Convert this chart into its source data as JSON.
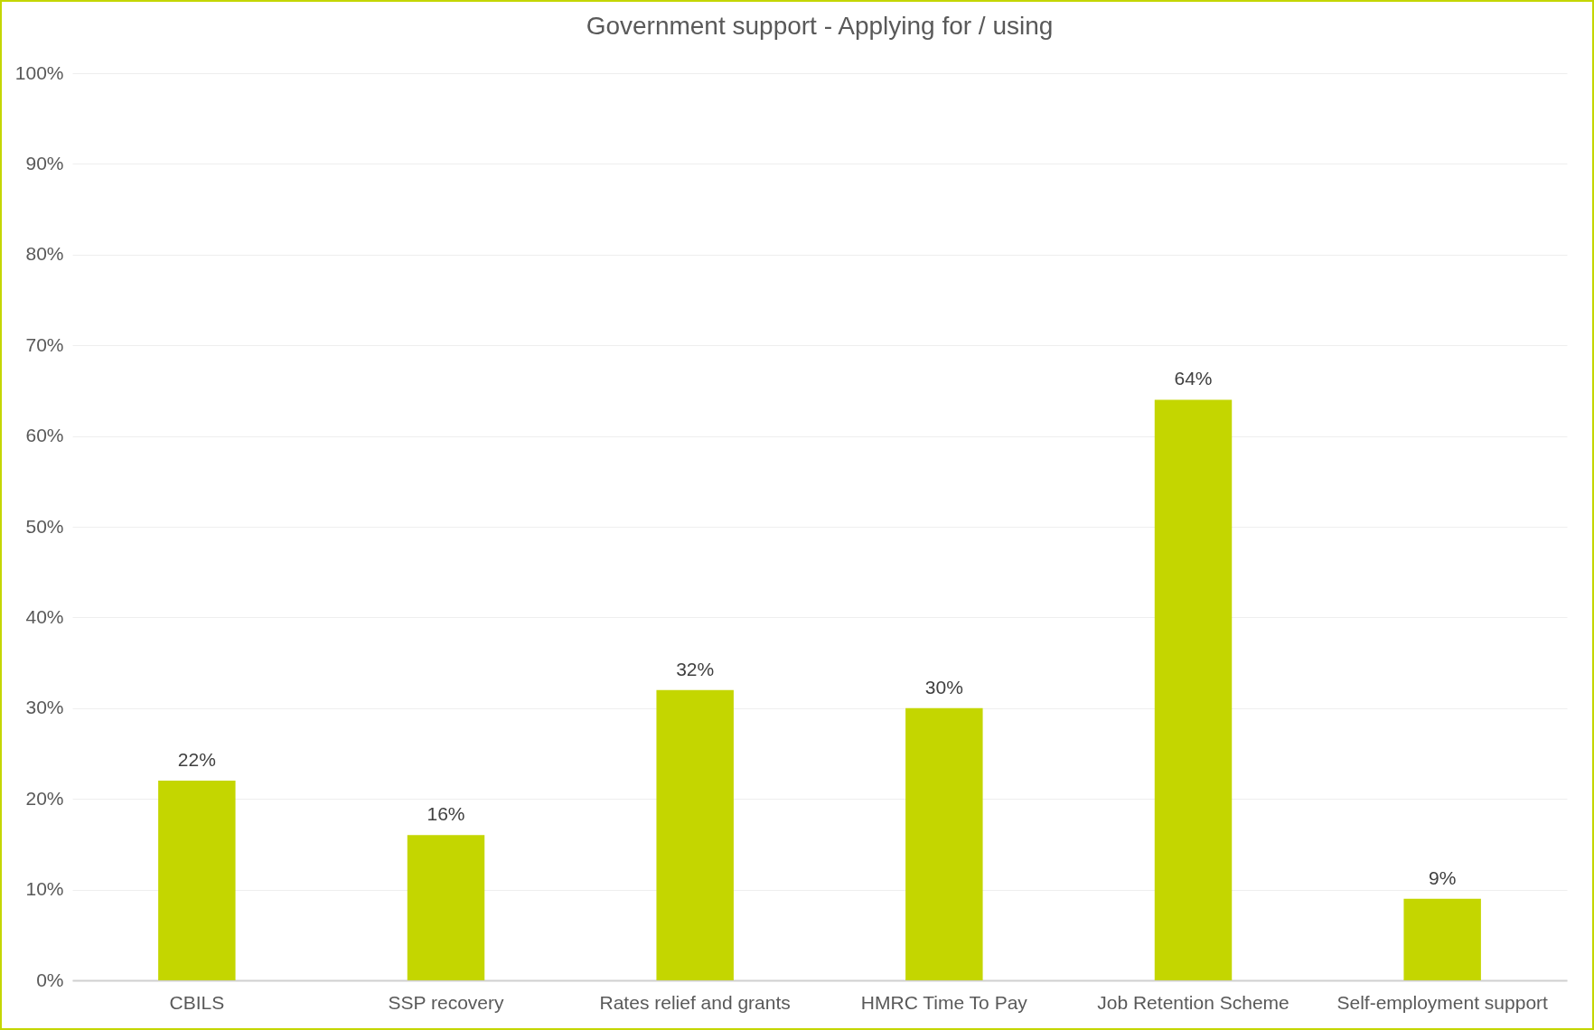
{
  "chart_data": {
    "type": "bar",
    "title": "Government support - Applying for / using",
    "categories": [
      "CBILS",
      "SSP recovery",
      "Rates relief and grants",
      "HMRC Time To Pay",
      "Job Retention Scheme",
      "Self-employment support"
    ],
    "values": [
      22,
      16,
      32,
      30,
      64,
      9
    ],
    "value_labels": [
      "22%",
      "16%",
      "32%",
      "30%",
      "64%",
      "9%"
    ],
    "color": "#c4d600",
    "ylim": [
      0,
      100
    ],
    "yticks": [
      {
        "value": 0,
        "label": "0%"
      },
      {
        "value": 10,
        "label": "10%"
      },
      {
        "value": 20,
        "label": "20%"
      },
      {
        "value": 30,
        "label": "30%"
      },
      {
        "value": 40,
        "label": "40%"
      },
      {
        "value": 50,
        "label": "50%"
      },
      {
        "value": 60,
        "label": "60%"
      },
      {
        "value": 70,
        "label": "70%"
      },
      {
        "value": 80,
        "label": "80%"
      },
      {
        "value": 90,
        "label": "90%"
      },
      {
        "value": 100,
        "label": "100%"
      }
    ],
    "grid": "y"
  }
}
